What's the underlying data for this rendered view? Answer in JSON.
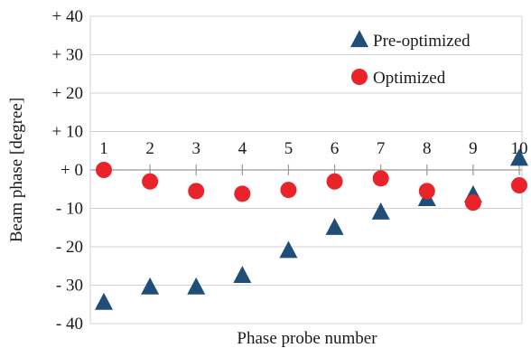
{
  "chart_data": {
    "type": "scatter",
    "xlabel": "Phase probe number",
    "ylabel": "Beam phase [degree]",
    "ylim": [
      -40,
      40
    ],
    "y_ticks": [
      {
        "value": 40,
        "label": "+ 40"
      },
      {
        "value": 30,
        "label": "+ 30"
      },
      {
        "value": 20,
        "label": "+ 20"
      },
      {
        "value": 10,
        "label": "+ 10"
      },
      {
        "value": 0,
        "label": "+ 0"
      },
      {
        "value": -10,
        "label": "- 10"
      },
      {
        "value": -20,
        "label": "- 20"
      },
      {
        "value": -30,
        "label": "- 30"
      },
      {
        "value": -40,
        "label": "- 40"
      }
    ],
    "categories": [
      "1",
      "2",
      "3",
      "4",
      "5",
      "6",
      "7",
      "8",
      "9",
      "10"
    ],
    "grid": true,
    "legend_position": "top-right",
    "series": [
      {
        "name": "Pre-optimized",
        "marker": "triangle",
        "color": "#1f4e79",
        "values": [
          -34.5,
          -30.5,
          -30.5,
          -27.5,
          -21,
          -15,
          -11,
          -7.5,
          -6.5,
          3
        ]
      },
      {
        "name": "Optimized",
        "marker": "circle",
        "color": "#e8232a",
        "values": [
          0,
          -3,
          -5.5,
          -6.2,
          -5.2,
          -3,
          -2.2,
          -5.5,
          -8.5,
          -4
        ]
      }
    ]
  }
}
